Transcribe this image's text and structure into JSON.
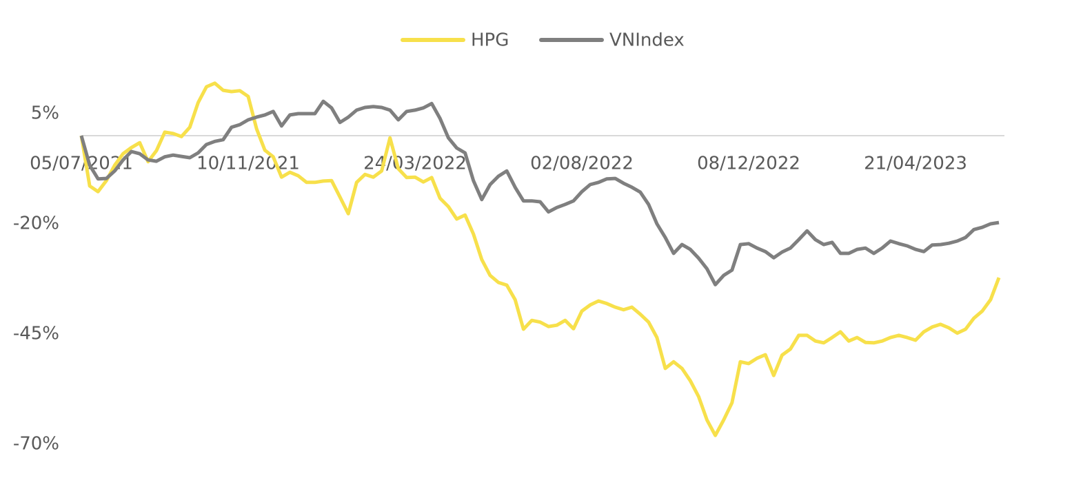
{
  "chart_data": {
    "type": "line",
    "categories": [
      "05/07/2021",
      null,
      null,
      null,
      null,
      null,
      null,
      null,
      null,
      null,
      null,
      null,
      null,
      null,
      null,
      null,
      null,
      null,
      null,
      null,
      "10/11/2021",
      null,
      null,
      null,
      null,
      null,
      null,
      null,
      null,
      null,
      null,
      null,
      null,
      null,
      null,
      null,
      null,
      null,
      null,
      null,
      "24/03/2022",
      null,
      null,
      null,
      null,
      null,
      null,
      null,
      null,
      null,
      null,
      null,
      null,
      null,
      null,
      null,
      null,
      null,
      null,
      null,
      "02/08/2022",
      null,
      null,
      null,
      null,
      null,
      null,
      null,
      null,
      null,
      null,
      null,
      null,
      null,
      null,
      null,
      null,
      null,
      null,
      null,
      "08/12/2022",
      null,
      null,
      null,
      null,
      null,
      null,
      null,
      null,
      null,
      null,
      null,
      null,
      null,
      null,
      null,
      null,
      null,
      null,
      null,
      "21/04/2023",
      null,
      null,
      null,
      null,
      null,
      null,
      null,
      null,
      null,
      null
    ],
    "series": [
      {
        "name": "HPG",
        "color": "#f7e04b",
        "values": [
          0,
          -11.4,
          -12.7,
          -10.2,
          -6.7,
          -4.1,
          -2.7,
          -1.6,
          -5.9,
          -3.4,
          0.8,
          0.5,
          -0.2,
          1.9,
          7.5,
          11.1,
          11.9,
          10.3,
          10,
          10.2,
          8.9,
          1.6,
          -3.3,
          -4.8,
          -9.4,
          -8.3,
          -9.1,
          -10.6,
          -10.6,
          -10.3,
          -10.2,
          -13.9,
          -17.7,
          -10.6,
          -8.8,
          -9.4,
          -8,
          -0.5,
          -7.5,
          -9.5,
          -9.4,
          -10.5,
          -9.5,
          -14.2,
          -16.1,
          -18.9,
          -18,
          -22.3,
          -28.1,
          -31.7,
          -33.3,
          -33.9,
          -37.2,
          -43.9,
          -41.9,
          -42.3,
          -43.3,
          -43,
          -41.9,
          -43.8,
          -39.8,
          -38.4,
          -37.5,
          -38.1,
          -38.9,
          -39.5,
          -38.9,
          -40.5,
          -42.3,
          -45.8,
          -52.8,
          -51.3,
          -52.8,
          -55.6,
          -59.2,
          -64.5,
          -68,
          -64.5,
          -60.6,
          -51.3,
          -51.7,
          -50.5,
          -49.7,
          -54.4,
          -49.8,
          -48.4,
          -45.3,
          -45.3,
          -46.6,
          -47,
          -45.8,
          -44.5,
          -46.6,
          -45.8,
          -46.9,
          -47,
          -46.6,
          -45.8,
          -45.3,
          -45.8,
          -46.4,
          -44.5,
          -43.4,
          -42.8,
          -43.6,
          -44.8,
          -43.9,
          -41.4,
          -39.8,
          -37.2,
          -32.2
        ]
      },
      {
        "name": "VNIndex",
        "color": "#7f7f7f",
        "values": [
          0,
          -6.7,
          -9.8,
          -9.7,
          -8,
          -5.5,
          -3.6,
          -4.1,
          -5.5,
          -5.8,
          -4.8,
          -4.4,
          -4.7,
          -5,
          -3.9,
          -2,
          -1.3,
          -0.9,
          1.9,
          2.5,
          3.6,
          4.2,
          4.7,
          5.5,
          2.2,
          4.7,
          5,
          5,
          5,
          7.8,
          6.3,
          3,
          4.2,
          5.8,
          6.4,
          6.6,
          6.4,
          5.8,
          3.6,
          5.5,
          5.8,
          6.3,
          7.3,
          3.9,
          -0.5,
          -2.8,
          -3.9,
          -10.2,
          -14.5,
          -11.1,
          -9.2,
          -8,
          -11.7,
          -14.8,
          -14.8,
          -15,
          -17.3,
          -16.3,
          -15.6,
          -14.8,
          -12.7,
          -11.1,
          -10.6,
          -9.8,
          -9.7,
          -10.8,
          -11.7,
          -12.8,
          -15.6,
          -20,
          -23.1,
          -26.7,
          -24.7,
          -25.8,
          -27.8,
          -30.2,
          -33.8,
          -31.7,
          -30.5,
          -24.7,
          -24.5,
          -25.5,
          -26.3,
          -27.7,
          -26.4,
          -25.5,
          -23.6,
          -21.6,
          -23.6,
          -24.7,
          -24.2,
          -26.7,
          -26.7,
          -25.8,
          -25.5,
          -26.7,
          -25.5,
          -23.9,
          -24.5,
          -25,
          -25.8,
          -26.3,
          -24.8,
          -24.7,
          -24.4,
          -23.9,
          -23.1,
          -21.3,
          -20.8,
          -20,
          -19.7
        ]
      }
    ],
    "ylim": [
      -75,
      15
    ],
    "yticks": [
      {
        "value": 5,
        "label": "5%"
      },
      {
        "value": -20,
        "label": "-20%"
      },
      {
        "value": -45,
        "label": "-45%"
      },
      {
        "value": -70,
        "label": "-70%"
      }
    ],
    "legend": "top"
  }
}
